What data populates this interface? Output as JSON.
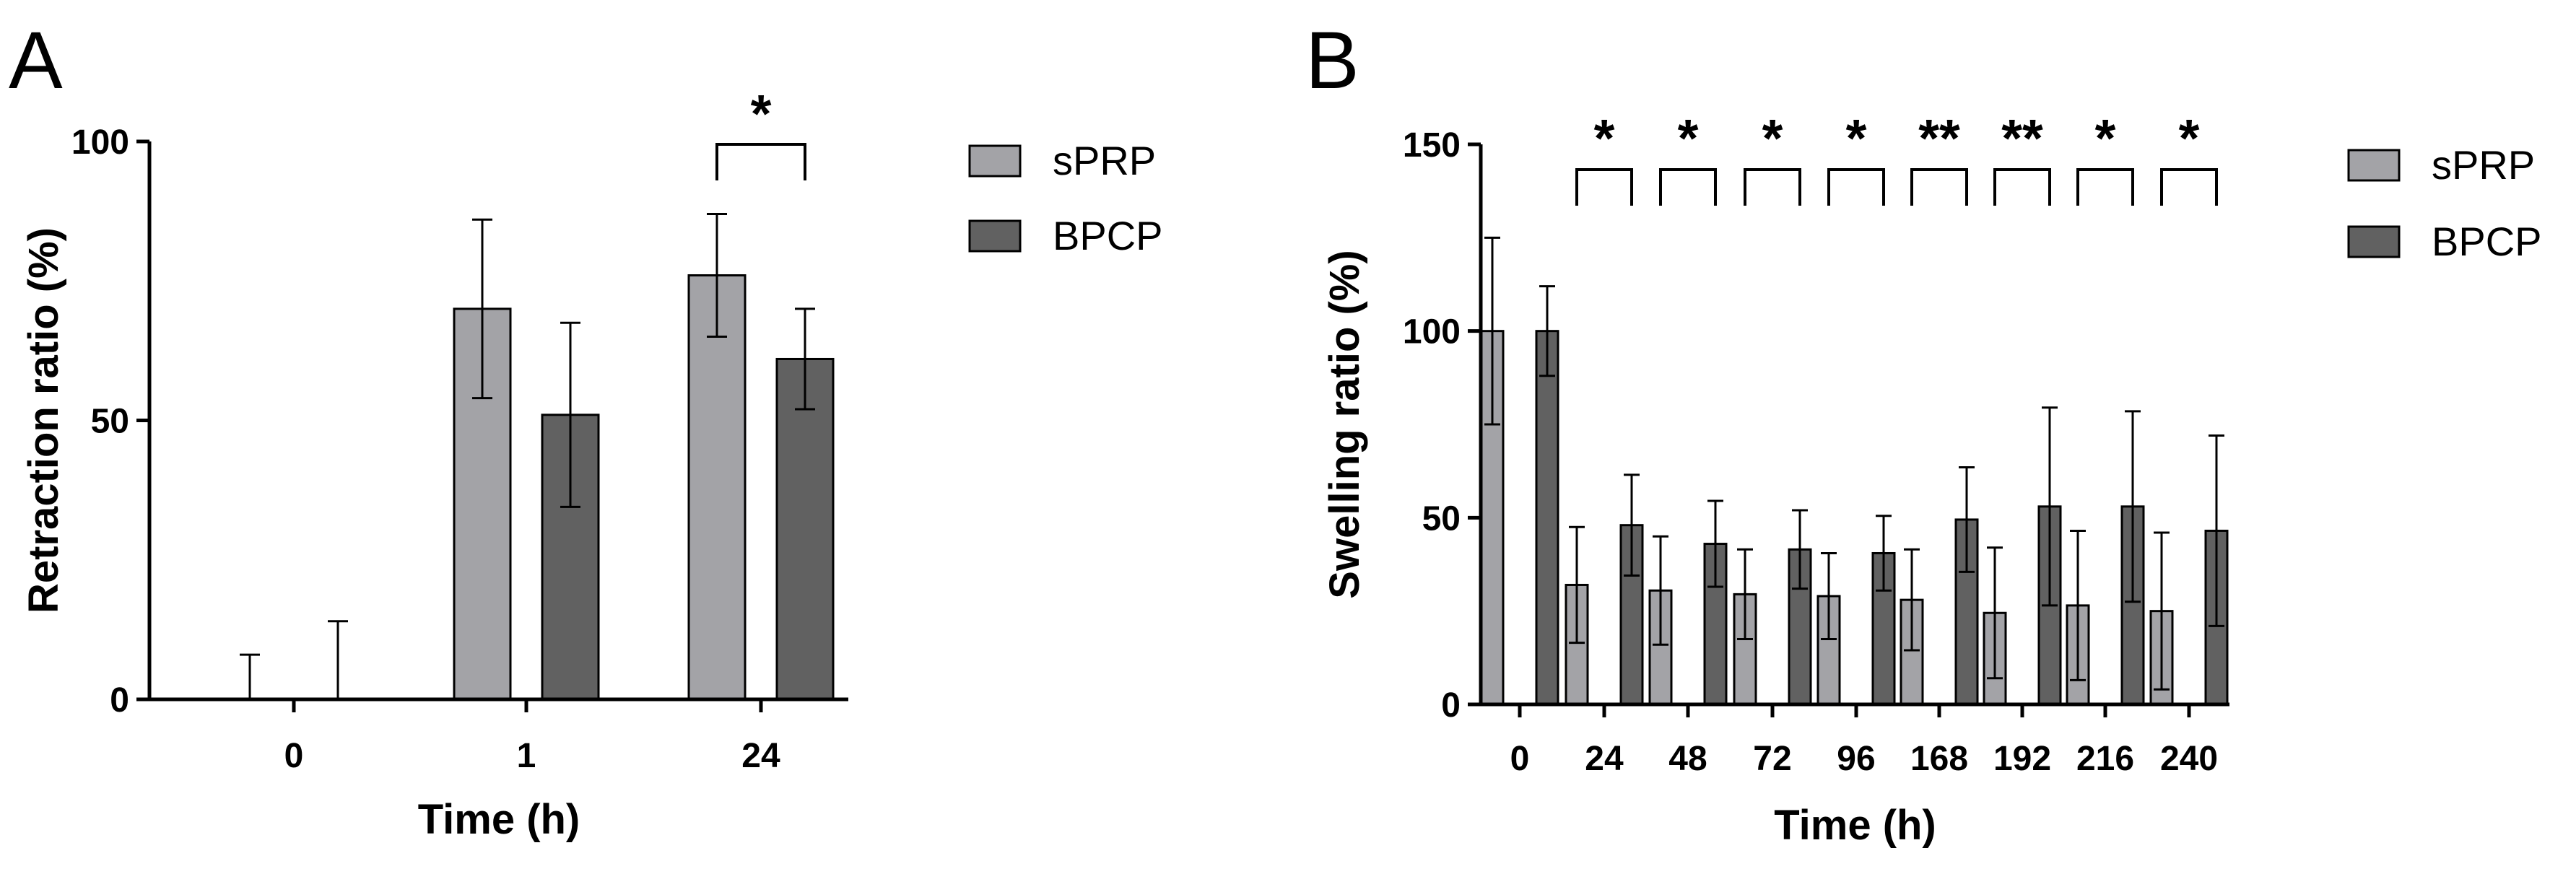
{
  "colors": {
    "sPRP": "#a3a3a7",
    "BPCP": "#616161",
    "axis": "#000000"
  },
  "chart_data": [
    {
      "panel": "A",
      "type": "bar",
      "xlabel": "Time (h)",
      "ylabel": "Retraction ratio (%)",
      "ylim": [
        0,
        100
      ],
      "yticks": [
        "0",
        "50",
        "100"
      ],
      "categories": [
        "0",
        "1",
        "24"
      ],
      "series": [
        {
          "name": "sPRP",
          "values": [
            0,
            70,
            76
          ],
          "errors": [
            8,
            16,
            11
          ]
        },
        {
          "name": "BPCP",
          "values": [
            0,
            51,
            61
          ],
          "errors": [
            14,
            16.5,
            9
          ]
        }
      ],
      "significance": [
        {
          "category": "24",
          "label": "*"
        }
      ],
      "grid": false,
      "legend_position": "right"
    },
    {
      "panel": "B",
      "type": "bar",
      "xlabel": "Time (h)",
      "ylabel": "Swelling ratio (%)",
      "ylim": [
        0,
        150
      ],
      "yticks": [
        "0",
        "50",
        "100",
        "150"
      ],
      "categories": [
        "0",
        "24",
        "48",
        "72",
        "96",
        "168",
        "192",
        "216",
        "240"
      ],
      "series": [
        {
          "name": "sPRP",
          "values": [
            100,
            32,
            30.5,
            29.5,
            29,
            28,
            24.5,
            26.5,
            25
          ],
          "errors": [
            25,
            15.5,
            14.5,
            12,
            11.5,
            13.5,
            17.5,
            20,
            21
          ]
        },
        {
          "name": "BPCP",
          "values": [
            100,
            48,
            43,
            41.5,
            40.5,
            49.5,
            53,
            53,
            46.5
          ],
          "errors": [
            12,
            13.5,
            11.5,
            10.5,
            10,
            14,
            26.5,
            25.5,
            25.5
          ]
        }
      ],
      "significance": [
        {
          "category": "24",
          "label": "*"
        },
        {
          "category": "48",
          "label": "*"
        },
        {
          "category": "72",
          "label": "*"
        },
        {
          "category": "96",
          "label": "*"
        },
        {
          "category": "168",
          "label": "**"
        },
        {
          "category": "192",
          "label": "**"
        },
        {
          "category": "216",
          "label": "*"
        },
        {
          "category": "240",
          "label": "*"
        }
      ],
      "grid": false,
      "legend_position": "right"
    }
  ]
}
